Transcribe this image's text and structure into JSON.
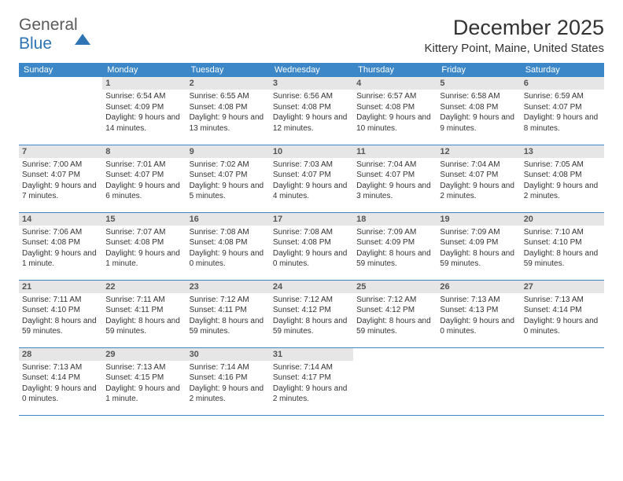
{
  "brand": {
    "general": "General",
    "blue": "Blue"
  },
  "title": "December 2025",
  "location": "Kittery Point, Maine, United States",
  "colors": {
    "header_bg": "#3b87c8",
    "header_text": "#ffffff",
    "daynum_bg": "#e6e6e6",
    "daynum_text": "#555555",
    "body_text": "#333333",
    "rule": "#3b87c8",
    "logo_gray": "#5a5a5a",
    "logo_blue": "#2e74b5",
    "page_bg": "#ffffff"
  },
  "typography": {
    "title_fontsize": 27,
    "location_fontsize": 15,
    "dayhead_fontsize": 11,
    "daynum_fontsize": 11,
    "body_fontsize": 10
  },
  "day_headers": [
    "Sunday",
    "Monday",
    "Tuesday",
    "Wednesday",
    "Thursday",
    "Friday",
    "Saturday"
  ],
  "weeks": [
    [
      null,
      {
        "n": "1",
        "sr": "Sunrise: 6:54 AM",
        "ss": "Sunset: 4:09 PM",
        "dl": "Daylight: 9 hours and 14 minutes."
      },
      {
        "n": "2",
        "sr": "Sunrise: 6:55 AM",
        "ss": "Sunset: 4:08 PM",
        "dl": "Daylight: 9 hours and 13 minutes."
      },
      {
        "n": "3",
        "sr": "Sunrise: 6:56 AM",
        "ss": "Sunset: 4:08 PM",
        "dl": "Daylight: 9 hours and 12 minutes."
      },
      {
        "n": "4",
        "sr": "Sunrise: 6:57 AM",
        "ss": "Sunset: 4:08 PM",
        "dl": "Daylight: 9 hours and 10 minutes."
      },
      {
        "n": "5",
        "sr": "Sunrise: 6:58 AM",
        "ss": "Sunset: 4:08 PM",
        "dl": "Daylight: 9 hours and 9 minutes."
      },
      {
        "n": "6",
        "sr": "Sunrise: 6:59 AM",
        "ss": "Sunset: 4:07 PM",
        "dl": "Daylight: 9 hours and 8 minutes."
      }
    ],
    [
      {
        "n": "7",
        "sr": "Sunrise: 7:00 AM",
        "ss": "Sunset: 4:07 PM",
        "dl": "Daylight: 9 hours and 7 minutes."
      },
      {
        "n": "8",
        "sr": "Sunrise: 7:01 AM",
        "ss": "Sunset: 4:07 PM",
        "dl": "Daylight: 9 hours and 6 minutes."
      },
      {
        "n": "9",
        "sr": "Sunrise: 7:02 AM",
        "ss": "Sunset: 4:07 PM",
        "dl": "Daylight: 9 hours and 5 minutes."
      },
      {
        "n": "10",
        "sr": "Sunrise: 7:03 AM",
        "ss": "Sunset: 4:07 PM",
        "dl": "Daylight: 9 hours and 4 minutes."
      },
      {
        "n": "11",
        "sr": "Sunrise: 7:04 AM",
        "ss": "Sunset: 4:07 PM",
        "dl": "Daylight: 9 hours and 3 minutes."
      },
      {
        "n": "12",
        "sr": "Sunrise: 7:04 AM",
        "ss": "Sunset: 4:07 PM",
        "dl": "Daylight: 9 hours and 2 minutes."
      },
      {
        "n": "13",
        "sr": "Sunrise: 7:05 AM",
        "ss": "Sunset: 4:08 PM",
        "dl": "Daylight: 9 hours and 2 minutes."
      }
    ],
    [
      {
        "n": "14",
        "sr": "Sunrise: 7:06 AM",
        "ss": "Sunset: 4:08 PM",
        "dl": "Daylight: 9 hours and 1 minute."
      },
      {
        "n": "15",
        "sr": "Sunrise: 7:07 AM",
        "ss": "Sunset: 4:08 PM",
        "dl": "Daylight: 9 hours and 1 minute."
      },
      {
        "n": "16",
        "sr": "Sunrise: 7:08 AM",
        "ss": "Sunset: 4:08 PM",
        "dl": "Daylight: 9 hours and 0 minutes."
      },
      {
        "n": "17",
        "sr": "Sunrise: 7:08 AM",
        "ss": "Sunset: 4:08 PM",
        "dl": "Daylight: 9 hours and 0 minutes."
      },
      {
        "n": "18",
        "sr": "Sunrise: 7:09 AM",
        "ss": "Sunset: 4:09 PM",
        "dl": "Daylight: 8 hours and 59 minutes."
      },
      {
        "n": "19",
        "sr": "Sunrise: 7:09 AM",
        "ss": "Sunset: 4:09 PM",
        "dl": "Daylight: 8 hours and 59 minutes."
      },
      {
        "n": "20",
        "sr": "Sunrise: 7:10 AM",
        "ss": "Sunset: 4:10 PM",
        "dl": "Daylight: 8 hours and 59 minutes."
      }
    ],
    [
      {
        "n": "21",
        "sr": "Sunrise: 7:11 AM",
        "ss": "Sunset: 4:10 PM",
        "dl": "Daylight: 8 hours and 59 minutes."
      },
      {
        "n": "22",
        "sr": "Sunrise: 7:11 AM",
        "ss": "Sunset: 4:11 PM",
        "dl": "Daylight: 8 hours and 59 minutes."
      },
      {
        "n": "23",
        "sr": "Sunrise: 7:12 AM",
        "ss": "Sunset: 4:11 PM",
        "dl": "Daylight: 8 hours and 59 minutes."
      },
      {
        "n": "24",
        "sr": "Sunrise: 7:12 AM",
        "ss": "Sunset: 4:12 PM",
        "dl": "Daylight: 8 hours and 59 minutes."
      },
      {
        "n": "25",
        "sr": "Sunrise: 7:12 AM",
        "ss": "Sunset: 4:12 PM",
        "dl": "Daylight: 8 hours and 59 minutes."
      },
      {
        "n": "26",
        "sr": "Sunrise: 7:13 AM",
        "ss": "Sunset: 4:13 PM",
        "dl": "Daylight: 9 hours and 0 minutes."
      },
      {
        "n": "27",
        "sr": "Sunrise: 7:13 AM",
        "ss": "Sunset: 4:14 PM",
        "dl": "Daylight: 9 hours and 0 minutes."
      }
    ],
    [
      {
        "n": "28",
        "sr": "Sunrise: 7:13 AM",
        "ss": "Sunset: 4:14 PM",
        "dl": "Daylight: 9 hours and 0 minutes."
      },
      {
        "n": "29",
        "sr": "Sunrise: 7:13 AM",
        "ss": "Sunset: 4:15 PM",
        "dl": "Daylight: 9 hours and 1 minute."
      },
      {
        "n": "30",
        "sr": "Sunrise: 7:14 AM",
        "ss": "Sunset: 4:16 PM",
        "dl": "Daylight: 9 hours and 2 minutes."
      },
      {
        "n": "31",
        "sr": "Sunrise: 7:14 AM",
        "ss": "Sunset: 4:17 PM",
        "dl": "Daylight: 9 hours and 2 minutes."
      },
      null,
      null,
      null
    ]
  ]
}
